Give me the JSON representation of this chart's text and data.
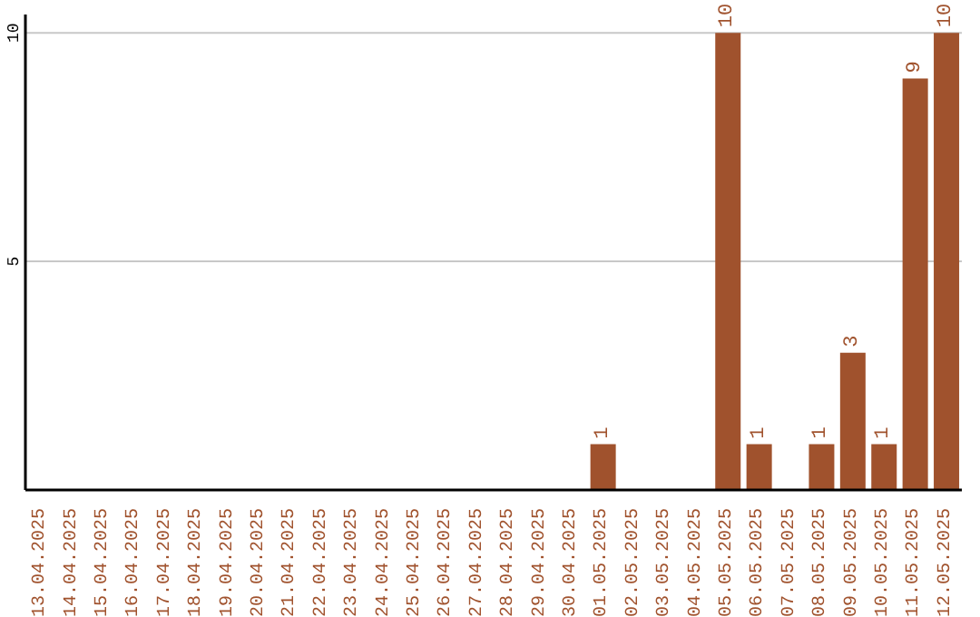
{
  "chart_data": {
    "type": "bar",
    "categories": [
      "13.04.2025",
      "14.04.2025",
      "15.04.2025",
      "16.04.2025",
      "17.04.2025",
      "18.04.2025",
      "19.04.2025",
      "20.04.2025",
      "21.04.2025",
      "22.04.2025",
      "23.04.2025",
      "24.04.2025",
      "25.04.2025",
      "26.04.2025",
      "27.04.2025",
      "28.04.2025",
      "29.04.2025",
      "30.04.2025",
      "01.05.2025",
      "02.05.2025",
      "03.05.2025",
      "04.05.2025",
      "05.05.2025",
      "06.05.2025",
      "07.05.2025",
      "08.05.2025",
      "09.05.2025",
      "10.05.2025",
      "11.05.2025",
      "12.05.2025"
    ],
    "values": [
      0,
      0,
      0,
      0,
      0,
      0,
      0,
      0,
      0,
      0,
      0,
      0,
      0,
      0,
      0,
      0,
      0,
      0,
      1,
      0,
      0,
      0,
      10,
      1,
      0,
      1,
      3,
      1,
      9,
      10
    ],
    "value_labels": [
      null,
      null,
      null,
      null,
      null,
      null,
      null,
      null,
      null,
      null,
      null,
      null,
      null,
      null,
      null,
      null,
      null,
      null,
      "1",
      null,
      null,
      null,
      "10",
      "1",
      null,
      "1",
      "3",
      "1",
      "9",
      "10"
    ],
    "color": "#a0522d",
    "ylim": [
      0,
      10.4
    ],
    "yticks": [
      5,
      10
    ],
    "grid": "y"
  }
}
